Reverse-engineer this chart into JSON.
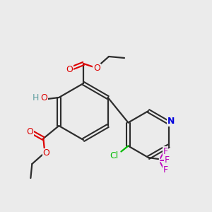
{
  "background_color": "#ebebeb",
  "bond_color": "#2d2d2d",
  "colors": {
    "O": "#dd0000",
    "N": "#0000dd",
    "Cl": "#00bb00",
    "F": "#bb00bb",
    "H_gray": "#5f9ea0",
    "C": "#2d2d2d"
  },
  "figsize": [
    3.0,
    3.0
  ],
  "dpi": 100
}
